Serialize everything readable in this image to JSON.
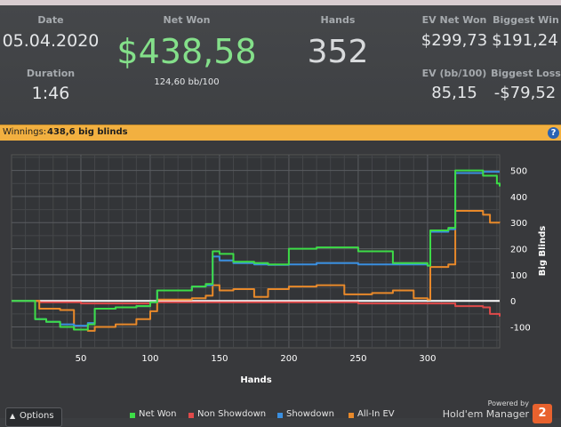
{
  "stats": {
    "date_label": "Date",
    "date_value": "05.04.2020",
    "duration_label": "Duration",
    "duration_value": "1:46",
    "net_won_label": "Net Won",
    "net_won_value": "$438,58",
    "bb_per_100": "124,60 bb/100",
    "hands_label": "Hands",
    "hands_value": "352",
    "ev_net_won_label": "EV Net Won",
    "ev_net_won_value": "$299,73",
    "biggest_win_label": "Biggest Win",
    "biggest_win_value": "$191,24",
    "ev_bb100_label": "EV (bb/100)",
    "ev_bb100_value": "85,15",
    "biggest_loss_label": "Biggest Loss",
    "biggest_loss_value": "-$79,52"
  },
  "winnings_bar": {
    "label": "Winnings:",
    "value": "438,6 big blinds",
    "help_icon": "?"
  },
  "footer": {
    "options_label": "Options",
    "powered_by": "Powered by",
    "brand": "Hold'em Manager",
    "brand_logo": "2"
  },
  "colors": {
    "net_won": "#3ddc47",
    "non_showdown": "#e04a4a",
    "showdown": "#3a8fe0",
    "all_in_ev": "#e8892a"
  },
  "chart_data": {
    "type": "line",
    "xlabel": "Hands",
    "ylabel": "Big Blinds",
    "xlim": [
      0,
      352
    ],
    "ylim": [
      -180,
      560
    ],
    "x_ticks": [
      50,
      100,
      150,
      200,
      250,
      300
    ],
    "y_ticks": [
      -100,
      0,
      100,
      200,
      300,
      400,
      500
    ],
    "grid": true,
    "legend_position": "bottom",
    "series": [
      {
        "name": "Net Won",
        "x": [
          0,
          15,
          17,
          25,
          35,
          45,
          55,
          60,
          75,
          90,
          100,
          105,
          130,
          140,
          145,
          150,
          160,
          175,
          185,
          200,
          220,
          250,
          275,
          300,
          302,
          315,
          320,
          340,
          350,
          352
        ],
        "y": [
          0,
          0,
          -70,
          -80,
          -100,
          -110,
          -90,
          -30,
          -25,
          -20,
          -5,
          40,
          55,
          65,
          190,
          180,
          150,
          145,
          140,
          200,
          205,
          190,
          145,
          135,
          270,
          280,
          500,
          480,
          450,
          438.6
        ]
      },
      {
        "name": "Non Showdown",
        "x": [
          0,
          20,
          50,
          100,
          150,
          200,
          250,
          300,
          320,
          340,
          345,
          352
        ],
        "y": [
          0,
          -5,
          -10,
          -5,
          -5,
          -5,
          -10,
          -10,
          -20,
          -25,
          -50,
          -60
        ]
      },
      {
        "name": "Showdown",
        "x": [
          0,
          15,
          17,
          25,
          35,
          45,
          55,
          60,
          75,
          90,
          100,
          105,
          130,
          140,
          145,
          150,
          160,
          175,
          185,
          200,
          220,
          250,
          275,
          300,
          302,
          315,
          320,
          340,
          352
        ],
        "y": [
          0,
          0,
          -70,
          -80,
          -90,
          -95,
          -85,
          -30,
          -25,
          -20,
          -5,
          40,
          55,
          60,
          170,
          155,
          145,
          140,
          138,
          140,
          145,
          140,
          140,
          135,
          265,
          275,
          490,
          495,
          495
        ]
      },
      {
        "name": "All-In EV",
        "x": [
          0,
          15,
          20,
          35,
          45,
          55,
          60,
          75,
          90,
          100,
          105,
          130,
          140,
          145,
          150,
          160,
          175,
          185,
          200,
          220,
          240,
          260,
          275,
          290,
          300,
          302,
          315,
          320,
          340,
          345,
          352
        ],
        "y": [
          0,
          0,
          -30,
          -35,
          -110,
          -115,
          -100,
          -90,
          -70,
          -40,
          5,
          10,
          20,
          60,
          40,
          45,
          15,
          45,
          55,
          60,
          25,
          30,
          40,
          10,
          5,
          130,
          140,
          345,
          330,
          300,
          299.7
        ]
      }
    ]
  }
}
